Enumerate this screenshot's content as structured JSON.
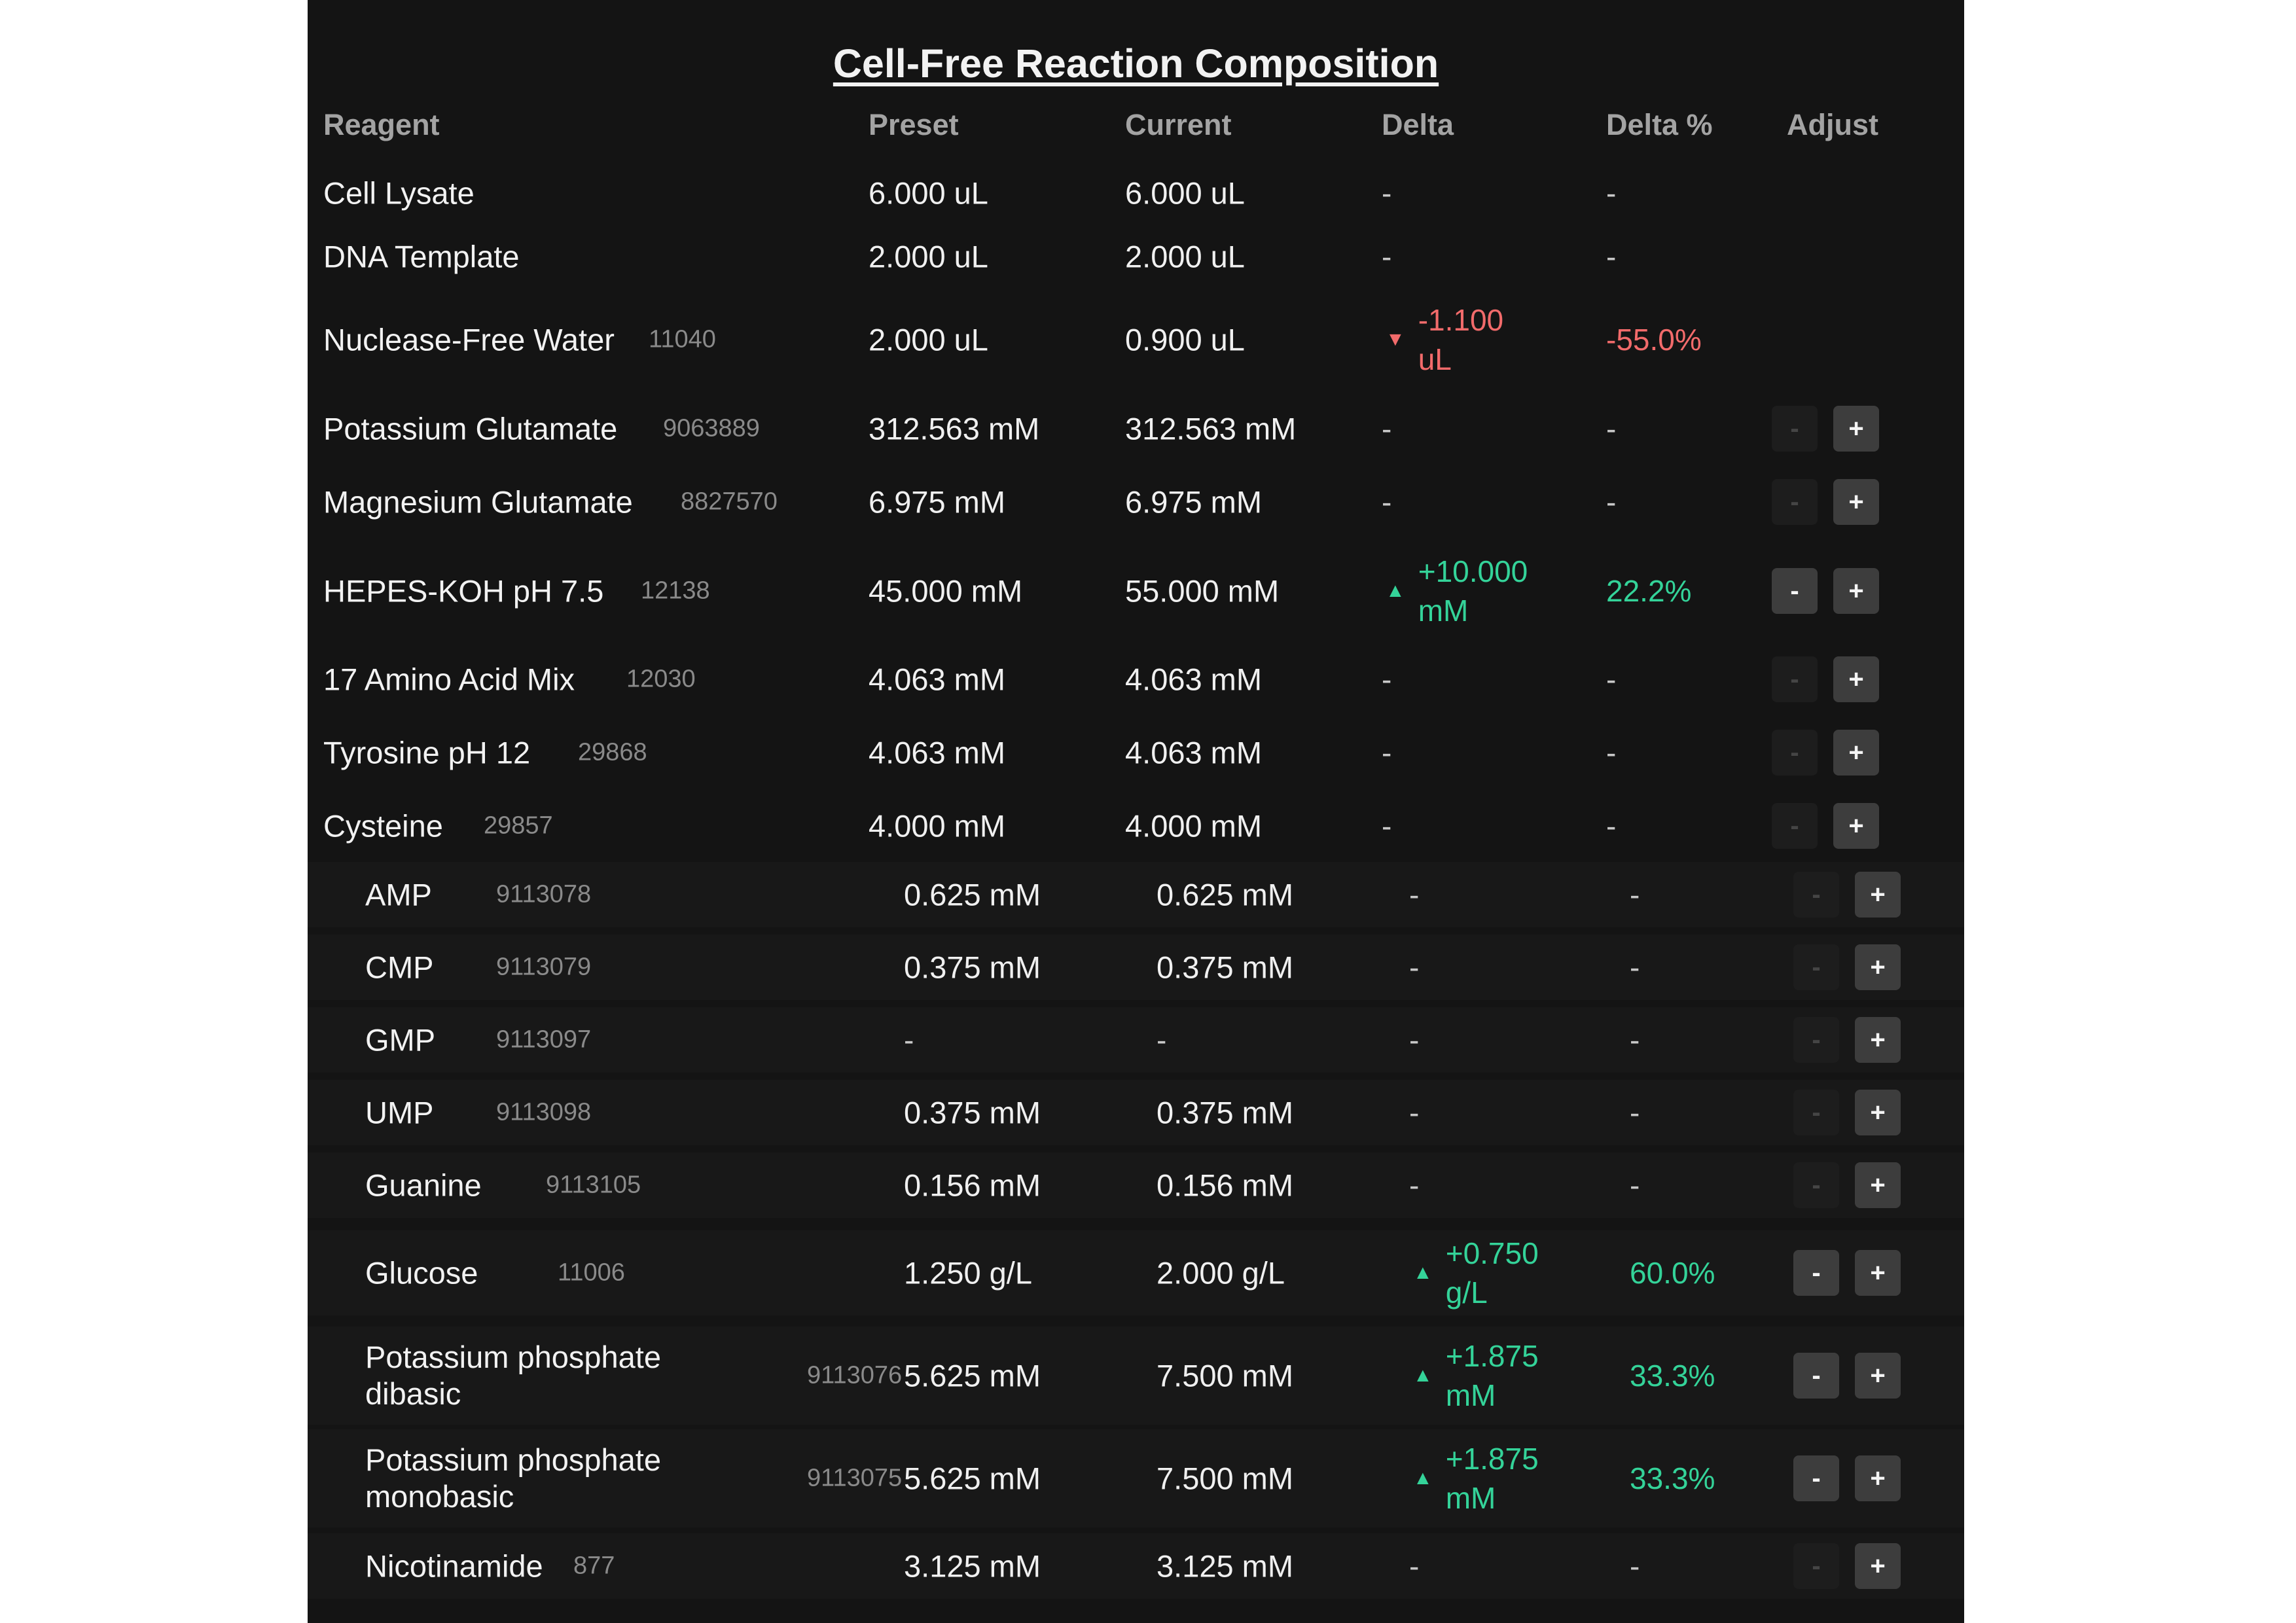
{
  "title": "Cell-Free Reaction Composition",
  "columns": {
    "reagent": "Reagent",
    "preset": "Preset",
    "current": "Current",
    "delta": "Delta",
    "delta_pct": "Delta %",
    "adjust": "Adjust"
  },
  "buttons": {
    "minus": "-",
    "plus": "+"
  },
  "colors": {
    "increase": "#34d399",
    "decrease": "#f26b6b",
    "panel": "#141414"
  },
  "rows": [
    {
      "name": "Cell Lysate",
      "id": "",
      "preset": "6.000 uL",
      "current": "6.000 uL",
      "delta": "-",
      "delta_pct": "-",
      "adjust": false
    },
    {
      "name": "DNA Template",
      "id": "",
      "preset": "2.000 uL",
      "current": "2.000 uL",
      "delta": "-",
      "delta_pct": "-",
      "adjust": false
    },
    {
      "name": "Nuclease-Free Water",
      "id": "11040",
      "preset": "2.000 uL",
      "current": "0.900 uL",
      "delta": "-1.100 uL",
      "delta_pct": "-55.0%",
      "direction": "down",
      "adjust": false
    },
    {
      "name": "Potassium Glutamate",
      "id": "9063889",
      "preset": "312.563 mM",
      "current": "312.563 mM",
      "delta": "-",
      "delta_pct": "-",
      "adjust": true,
      "minus_enabled": false
    },
    {
      "name": "Magnesium Glutamate",
      "id": "8827570",
      "preset": "6.975 mM",
      "current": "6.975 mM",
      "delta": "-",
      "delta_pct": "-",
      "adjust": true,
      "minus_enabled": false
    },
    {
      "name": "HEPES-KOH pH 7.5",
      "id": "12138",
      "preset": "45.000 mM",
      "current": "55.000 mM",
      "delta": "+10.000 mM",
      "delta_pct": "22.2%",
      "direction": "up",
      "adjust": true,
      "minus_enabled": true
    },
    {
      "name": "17 Amino Acid Mix",
      "id": "12030",
      "preset": "4.063 mM",
      "current": "4.063 mM",
      "delta": "-",
      "delta_pct": "-",
      "adjust": true,
      "minus_enabled": false
    },
    {
      "name": "Tyrosine pH 12",
      "id": "29868",
      "preset": "4.063 mM",
      "current": "4.063 mM",
      "delta": "-",
      "delta_pct": "-",
      "adjust": true,
      "minus_enabled": false
    },
    {
      "name": "Cysteine",
      "id": "29857",
      "preset": "4.000 mM",
      "current": "4.000 mM",
      "delta": "-",
      "delta_pct": "-",
      "adjust": true,
      "minus_enabled": false
    },
    {
      "name": "AMP",
      "id": "9113078",
      "preset": "0.625 mM",
      "current": "0.625 mM",
      "delta": "-",
      "delta_pct": "-",
      "adjust": true,
      "minus_enabled": false
    },
    {
      "name": "CMP",
      "id": "9113079",
      "preset": "0.375 mM",
      "current": "0.375 mM",
      "delta": "-",
      "delta_pct": "-",
      "adjust": true,
      "minus_enabled": false
    },
    {
      "name": "GMP",
      "id": "9113097",
      "preset": "-",
      "current": "-",
      "delta": "-",
      "delta_pct": "-",
      "adjust": true,
      "minus_enabled": false
    },
    {
      "name": "UMP",
      "id": "9113098",
      "preset": "0.375 mM",
      "current": "0.375 mM",
      "delta": "-",
      "delta_pct": "-",
      "adjust": true,
      "minus_enabled": false
    },
    {
      "name": "Guanine",
      "id": "9113105",
      "preset": "0.156 mM",
      "current": "0.156 mM",
      "delta": "-",
      "delta_pct": "-",
      "adjust": true,
      "minus_enabled": false
    },
    {
      "name": "Glucose",
      "id": "11006",
      "preset": "1.250 g/L",
      "current": "2.000 g/L",
      "delta": "+0.750 g/L",
      "delta_pct": "60.0%",
      "direction": "up",
      "adjust": true,
      "minus_enabled": true
    },
    {
      "name": "Potassium phosphate dibasic",
      "id": "9113076",
      "preset": "5.625 mM",
      "current": "7.500 mM",
      "delta": "+1.875 mM",
      "delta_pct": "33.3%",
      "direction": "up",
      "adjust": true,
      "minus_enabled": true
    },
    {
      "name": "Potassium phosphate monobasic",
      "id": "9113075",
      "preset": "5.625 mM",
      "current": "7.500 mM",
      "delta": "+1.875 mM",
      "delta_pct": "33.3%",
      "direction": "up",
      "adjust": true,
      "minus_enabled": true
    },
    {
      "name": "Nicotinamide",
      "id": "877",
      "preset": "3.125 mM",
      "current": "3.125 mM",
      "delta": "-",
      "delta_pct": "-",
      "adjust": true,
      "minus_enabled": false
    }
  ]
}
